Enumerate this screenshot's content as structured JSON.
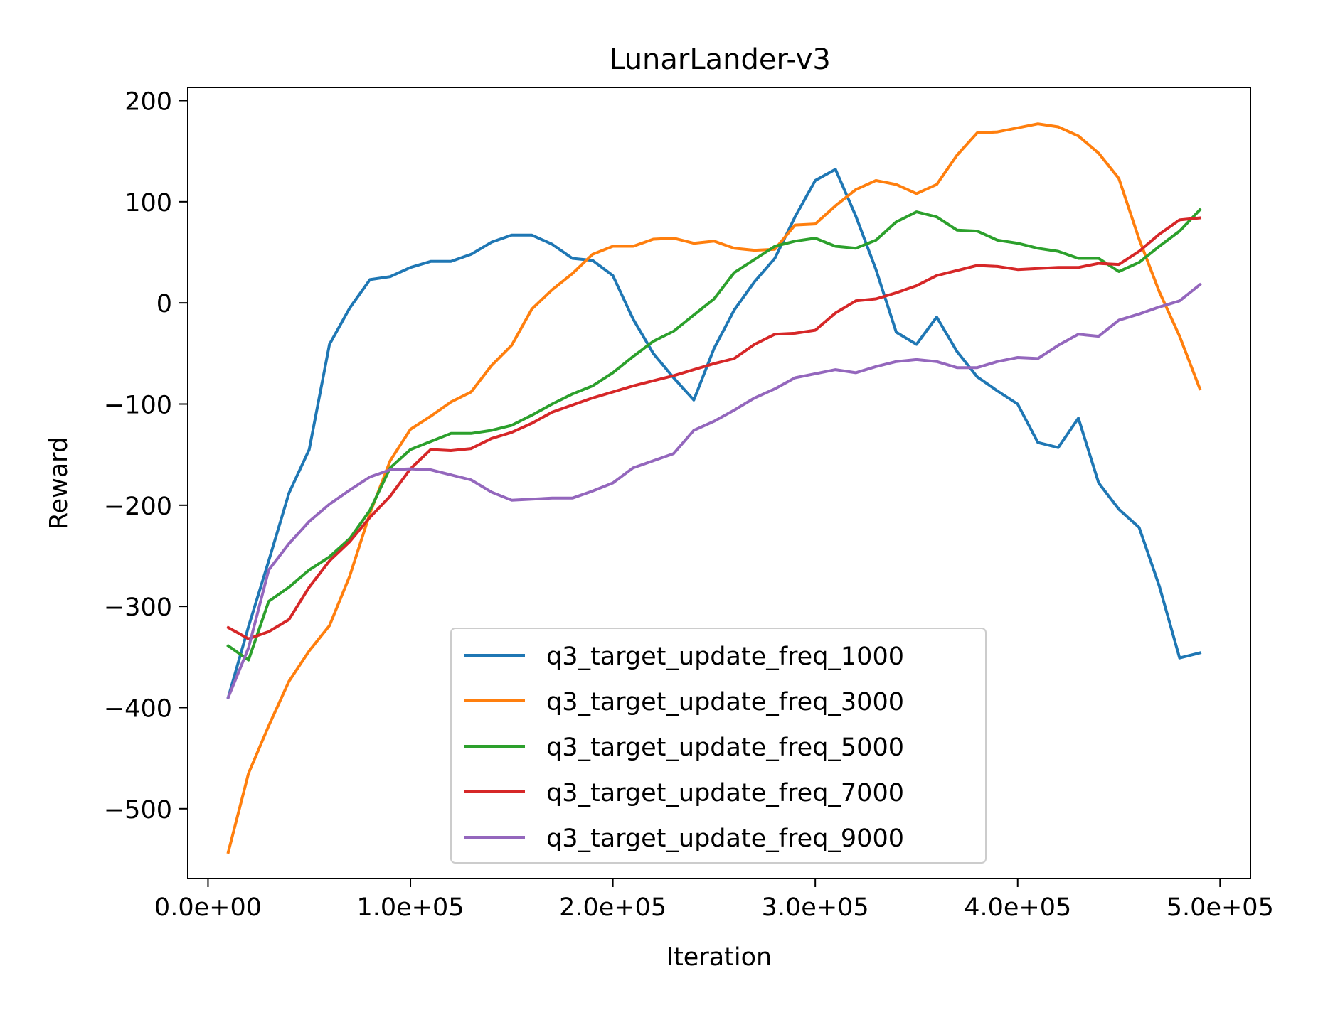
{
  "chart_data": {
    "type": "line",
    "title": "LunarLander-v3",
    "xlabel": "Iteration",
    "ylabel": "Reward",
    "xlim": [
      -10000,
      515000
    ],
    "ylim": [
      -569,
      213
    ],
    "xticks": [
      0,
      100000,
      200000,
      300000,
      400000,
      500000
    ],
    "xtick_labels": [
      "0.0e+00",
      "1.0e+05",
      "2.0e+05",
      "3.0e+05",
      "4.0e+05",
      "5.0e+05"
    ],
    "yticks": [
      200,
      100,
      0,
      -100,
      -200,
      -300,
      -400,
      -500
    ],
    "ytick_labels": [
      "200",
      "100",
      "0",
      "−100",
      "−200",
      "−300",
      "−400",
      "−500"
    ],
    "grid": false,
    "legend_position": "lower-center",
    "x": [
      10000,
      20000,
      30000,
      40000,
      50000,
      60000,
      70000,
      80000,
      90000,
      100000,
      110000,
      120000,
      130000,
      140000,
      150000,
      160000,
      170000,
      180000,
      190000,
      200000,
      210000,
      220000,
      230000,
      240000,
      250000,
      260000,
      270000,
      280000,
      290000,
      300000,
      310000,
      320000,
      330000,
      340000,
      350000,
      360000,
      370000,
      380000,
      390000,
      400000,
      410000,
      420000,
      430000,
      440000,
      450000,
      460000,
      470000,
      480000,
      490000
    ],
    "series": [
      {
        "name": "q3_target_update_freq_1000",
        "color": "#1f77b4",
        "values": [
          -390,
          -320,
          -255,
          -188,
          -145,
          -41,
          -5,
          23,
          26,
          35,
          41,
          41,
          48,
          60,
          67,
          67,
          58,
          44,
          42,
          27,
          -16,
          -50,
          -74,
          -96,
          -45,
          -7,
          21,
          44,
          85,
          121,
          132,
          86,
          33,
          -29,
          -41,
          -14,
          -48,
          -73,
          -87,
          -100,
          -138,
          -143,
          -114,
          -178,
          -204,
          -222,
          -280,
          -351,
          -346
        ]
      },
      {
        "name": "q3_target_update_freq_3000",
        "color": "#ff7f0e",
        "values": [
          -543,
          -465,
          -418,
          -374,
          -344,
          -319,
          -270,
          -208,
          -156,
          -125,
          -112,
          -98,
          -88,
          -62,
          -42,
          -6,
          13,
          29,
          48,
          56,
          56,
          63,
          64,
          59,
          61,
          54,
          52,
          53,
          77,
          78,
          96,
          112,
          121,
          117,
          108,
          117,
          146,
          168,
          169,
          173,
          177,
          174,
          165,
          148,
          123,
          63,
          11,
          -33,
          -85
        ]
      },
      {
        "name": "q3_target_update_freq_5000",
        "color": "#2ca02c",
        "values": [
          -339,
          -353,
          -295,
          -281,
          -264,
          -251,
          -233,
          -205,
          -163,
          -145,
          -137,
          -129,
          -129,
          -126,
          -121,
          -111,
          -100,
          -90,
          -82,
          -69,
          -53,
          -38,
          -28,
          -12,
          4,
          30,
          43,
          56,
          61,
          64,
          56,
          54,
          62,
          80,
          90,
          85,
          72,
          71,
          62,
          59,
          54,
          51,
          44,
          44,
          31,
          40,
          56,
          71,
          92
        ]
      },
      {
        "name": "q3_target_update_freq_7000",
        "color": "#d62728",
        "values": [
          -321,
          -332,
          -325,
          -313,
          -281,
          -255,
          -236,
          -212,
          -191,
          -164,
          -145,
          -146,
          -144,
          -134,
          -128,
          -119,
          -108,
          -101,
          -94,
          -88,
          -82,
          -77,
          -72,
          -66,
          -60,
          -55,
          -41,
          -31,
          -30,
          -27,
          -10,
          2,
          4,
          10,
          17,
          27,
          32,
          37,
          36,
          33,
          34,
          35,
          35,
          39,
          38,
          51,
          68,
          82,
          84
        ]
      },
      {
        "name": "q3_target_update_freq_9000",
        "color": "#9467bd",
        "values": [
          -390,
          -341,
          -264,
          -238,
          -216,
          -199,
          -185,
          -172,
          -165,
          -164,
          -165,
          -170,
          -175,
          -187,
          -195,
          -194,
          -193,
          -193,
          -186,
          -178,
          -163,
          -156,
          -149,
          -126,
          -117,
          -106,
          -94,
          -85,
          -74,
          -70,
          -66,
          -69,
          -63,
          -58,
          -56,
          -58,
          -64,
          -64,
          -58,
          -54,
          -55,
          -42,
          -31,
          -33,
          -17,
          -11,
          -4,
          2,
          18
        ]
      }
    ]
  }
}
